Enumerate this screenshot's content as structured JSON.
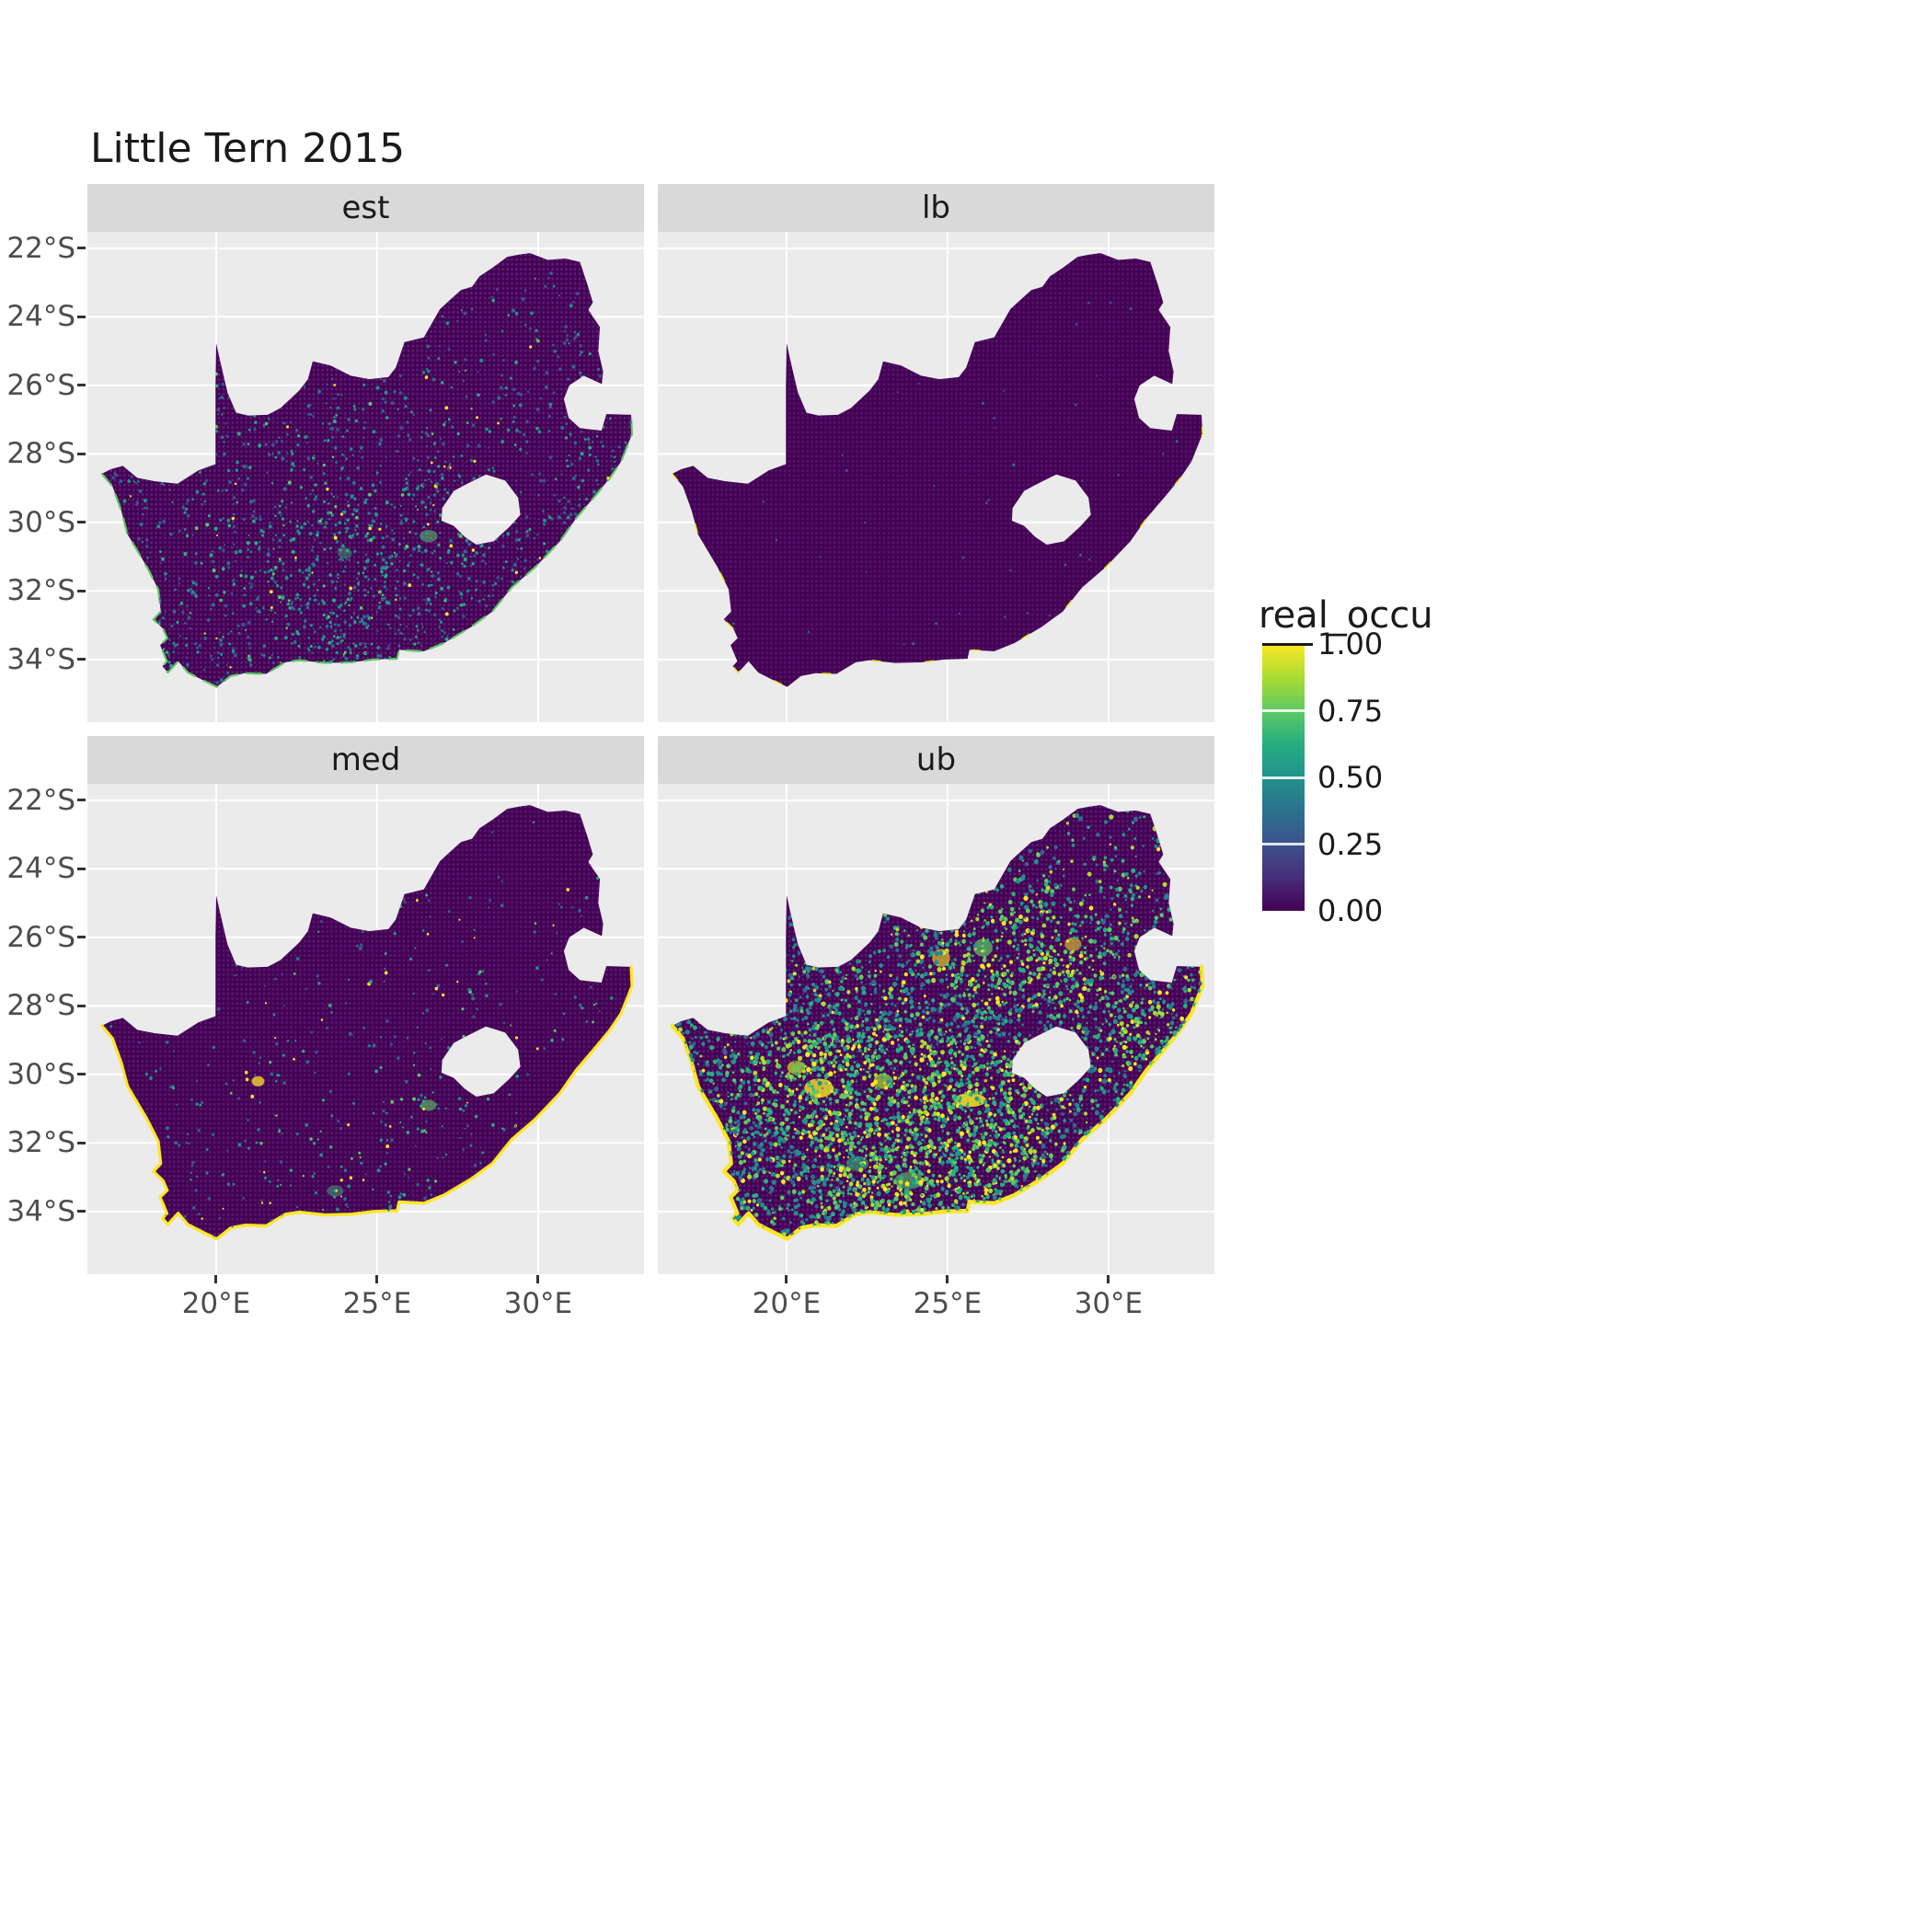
{
  "title": "Little Tern 2015",
  "chart_data": {
    "type": "heatmap",
    "title": "Little Tern 2015",
    "description": "Faceted raster maps of South Africa showing occupancy probability (real_occu) for Little Tern in 2015. Facets: est (estimate), lb (lower bound), med (median), ub (upper bound). Most cells are near 0 (dark purple); lb is almost entirely 0; ub shows widespread mid-to-high values; coastline cells are near 1 (yellow fringe).",
    "region": "South Africa (Lesotho and Eswatini excluded as holes)",
    "value_range": [
      0,
      1
    ],
    "x_ticks": [
      {
        "label": "20°E",
        "value": 20
      },
      {
        "label": "25°E",
        "value": 25
      },
      {
        "label": "30°E",
        "value": 30
      }
    ],
    "y_ticks": [
      {
        "label": "22°S",
        "value": 22
      },
      {
        "label": "24°S",
        "value": 24
      },
      {
        "label": "26°S",
        "value": 26
      },
      {
        "label": "28°S",
        "value": 28
      },
      {
        "label": "30°S",
        "value": 30
      },
      {
        "label": "32°S",
        "value": 32
      },
      {
        "label": "34°S",
        "value": 34
      }
    ],
    "legend": {
      "title": "real_occu",
      "ticks": [
        {
          "label": "1.00",
          "value": 1.0
        },
        {
          "label": "0.75",
          "value": 0.75
        },
        {
          "label": "0.50",
          "value": 0.5
        },
        {
          "label": "0.25",
          "value": 0.25
        },
        {
          "label": "0.00",
          "value": 0.0
        }
      ],
      "gradient_stops": [
        {
          "color": "#440154",
          "pos": 0
        },
        {
          "color": "#472d7b",
          "pos": 0.125
        },
        {
          "color": "#3b528b",
          "pos": 0.25
        },
        {
          "color": "#2c728e",
          "pos": 0.375
        },
        {
          "color": "#21918c",
          "pos": 0.5
        },
        {
          "color": "#27ad81",
          "pos": 0.625
        },
        {
          "color": "#5ec962",
          "pos": 0.75
        },
        {
          "color": "#aadc32",
          "pos": 0.875
        },
        {
          "color": "#fde725",
          "pos": 1
        }
      ]
    },
    "colors": {
      "panel_bg": "#ebebeb",
      "strip_bg": "#d9d9d9",
      "grid": "#ffffff",
      "base_fill": "#440154",
      "axis_text": "#4d4d4d",
      "title_text": "#1a1a1a"
    },
    "facets": [
      {
        "label": "est",
        "seed": 11,
        "n": 3400,
        "dot_min": 0.028,
        "dot_max": 0.058,
        "south_bias": 1.5,
        "base_accept": 0.5,
        "palette": [
          [
            "#3b528b",
            0.34
          ],
          [
            "#2c6e8e",
            0.3
          ],
          [
            "#21918c",
            0.2
          ],
          [
            "#28ae80",
            0.1
          ],
          [
            "#5ec962",
            0.04
          ],
          [
            "#fde725",
            0.02
          ]
        ],
        "clusters": [
          {
            "lon": 24.0,
            "lat": 30.8,
            "s": 2.2,
            "w": 0.4
          },
          {
            "lon": 23.5,
            "lat": 33.0,
            "s": 1.5,
            "w": 0.4
          },
          {
            "lon": 26.6,
            "lat": 30.3,
            "s": 1.2,
            "w": 0.5
          },
          {
            "lon": 31.6,
            "lat": 28.4,
            "s": 0.7,
            "w": 0.6
          },
          {
            "lon": 27.0,
            "lat": 26.3,
            "s": 1.0,
            "w": 0.25
          }
        ],
        "blobs": [
          {
            "lon": 26.6,
            "lat": 30.4,
            "rx": 0.28,
            "ry": 0.18,
            "color": "#5ec962",
            "opacity": 0.55
          },
          {
            "lon": 24.0,
            "lat": 30.9,
            "rx": 0.22,
            "ry": 0.16,
            "color": "#35b779",
            "opacity": 0.45
          }
        ],
        "coast_color": "#5ec962",
        "coast_width": 0.06,
        "coast_dash": "0.45 0.3",
        "stipple_opacity": 0.45
      },
      {
        "label": "lb",
        "seed": 22,
        "n": 220,
        "dot_min": 0.025,
        "dot_max": 0.045,
        "south_bias": 1.3,
        "base_accept": 0.35,
        "palette": [
          [
            "#3b528b",
            0.65
          ],
          [
            "#2c6e8e",
            0.35
          ]
        ],
        "clusters": [],
        "blobs": [],
        "coast_color": "#e5e419",
        "coast_width": 0.04,
        "coast_dash": "0.25 1.4",
        "stipple_opacity": 0.3
      },
      {
        "label": "med",
        "seed": 33,
        "n": 1500,
        "dot_min": 0.026,
        "dot_max": 0.055,
        "south_bias": 1.5,
        "base_accept": 0.38,
        "palette": [
          [
            "#3b528b",
            0.3
          ],
          [
            "#2c6e8e",
            0.24
          ],
          [
            "#21918c",
            0.22
          ],
          [
            "#28ae80",
            0.1
          ],
          [
            "#5ec962",
            0.08
          ],
          [
            "#fde725",
            0.06
          ]
        ],
        "clusters": [
          {
            "lon": 21.4,
            "lat": 30.2,
            "s": 0.9,
            "w": 0.5
          },
          {
            "lon": 26.6,
            "lat": 30.9,
            "s": 1.0,
            "w": 0.5
          },
          {
            "lon": 23.6,
            "lat": 33.3,
            "s": 1.3,
            "w": 0.4
          },
          {
            "lon": 31.4,
            "lat": 28.2,
            "s": 0.6,
            "w": 0.5
          }
        ],
        "blobs": [
          {
            "lon": 21.3,
            "lat": 30.2,
            "rx": 0.2,
            "ry": 0.15,
            "color": "#fde725",
            "opacity": 0.75
          },
          {
            "lon": 26.6,
            "lat": 30.9,
            "rx": 0.24,
            "ry": 0.16,
            "color": "#5ec962",
            "opacity": 0.6
          },
          {
            "lon": 23.7,
            "lat": 33.4,
            "rx": 0.26,
            "ry": 0.16,
            "color": "#35b779",
            "opacity": 0.5
          }
        ],
        "coast_color": "#fde725",
        "coast_width": 0.09,
        "coast_dash": "",
        "stipple_opacity": 0.35
      },
      {
        "label": "ub",
        "seed": 44,
        "n": 9500,
        "dot_min": 0.03,
        "dot_max": 0.075,
        "south_bias": 1.35,
        "base_accept": 0.42,
        "palette": [
          [
            "#31688e",
            0.16
          ],
          [
            "#26828e",
            0.18
          ],
          [
            "#21918c",
            0.2
          ],
          [
            "#28ae80",
            0.16
          ],
          [
            "#5ec962",
            0.15
          ],
          [
            "#addc30",
            0.08
          ],
          [
            "#fde725",
            0.07
          ]
        ],
        "clusters": [
          {
            "lon": 20.6,
            "lat": 30.4,
            "s": 1.4,
            "w": 0.7
          },
          {
            "lon": 23.0,
            "lat": 31.0,
            "s": 2.0,
            "w": 0.7
          },
          {
            "lon": 25.6,
            "lat": 31.4,
            "s": 2.0,
            "w": 0.6
          },
          {
            "lon": 23.6,
            "lat": 33.0,
            "s": 1.5,
            "w": 0.7
          },
          {
            "lon": 26.3,
            "lat": 26.5,
            "s": 1.3,
            "w": 0.55
          },
          {
            "lon": 28.8,
            "lat": 26.6,
            "s": 1.2,
            "w": 0.45
          },
          {
            "lon": 25.9,
            "lat": 30.6,
            "s": 0.9,
            "w": 0.8
          },
          {
            "lon": 30.9,
            "lat": 28.7,
            "s": 0.9,
            "w": 0.6
          }
        ],
        "blobs": [
          {
            "lon": 21.0,
            "lat": 30.4,
            "rx": 0.45,
            "ry": 0.28,
            "color": "#fde725",
            "opacity": 0.8
          },
          {
            "lon": 20.3,
            "lat": 29.8,
            "rx": 0.28,
            "ry": 0.2,
            "color": "#d8e219",
            "opacity": 0.7
          },
          {
            "lon": 25.7,
            "lat": 30.75,
            "rx": 0.5,
            "ry": 0.2,
            "color": "#fde725",
            "opacity": 0.85
          },
          {
            "lon": 23.0,
            "lat": 30.2,
            "rx": 0.3,
            "ry": 0.22,
            "color": "#addc30",
            "opacity": 0.7
          },
          {
            "lon": 24.8,
            "lat": 26.6,
            "rx": 0.28,
            "ry": 0.26,
            "color": "#fde725",
            "opacity": 0.6
          },
          {
            "lon": 26.1,
            "lat": 26.3,
            "rx": 0.3,
            "ry": 0.26,
            "color": "#5ec962",
            "opacity": 0.7
          },
          {
            "lon": 23.8,
            "lat": 33.1,
            "rx": 0.45,
            "ry": 0.25,
            "color": "#5ec962",
            "opacity": 0.6
          },
          {
            "lon": 22.2,
            "lat": 32.6,
            "rx": 0.35,
            "ry": 0.22,
            "color": "#35b779",
            "opacity": 0.6
          },
          {
            "lon": 28.9,
            "lat": 26.2,
            "rx": 0.26,
            "ry": 0.2,
            "color": "#fde725",
            "opacity": 0.55
          }
        ],
        "coast_color": "#fde725",
        "coast_width": 0.12,
        "coast_dash": "",
        "stipple_opacity": 0.4
      }
    ]
  }
}
